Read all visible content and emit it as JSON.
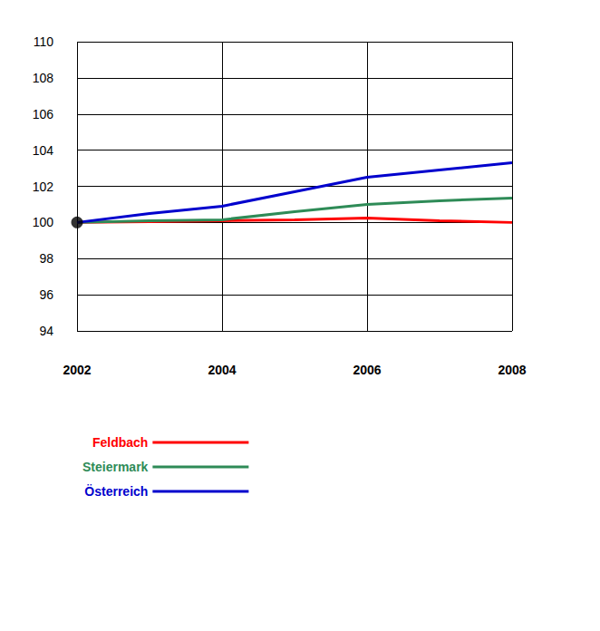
{
  "chart_data": {
    "type": "line",
    "xlim": [
      2002,
      2008
    ],
    "xticks": [
      2002,
      2004,
      2006,
      2008
    ],
    "ylim": [
      94,
      110
    ],
    "yticks": [
      94,
      96,
      98,
      100,
      102,
      104,
      106,
      108,
      110
    ],
    "grid": true,
    "legend": "bottom-left",
    "series": [
      {
        "name": "Feldbach",
        "color": "#ff0000",
        "x": [
          2002,
          2003,
          2004,
          2005,
          2006,
          2007,
          2008
        ],
        "values": [
          100,
          100.05,
          100.1,
          100.15,
          100.25,
          100.1,
          100.0
        ]
      },
      {
        "name": "Steiermark",
        "color": "#2e8b57",
        "x": [
          2002,
          2003,
          2004,
          2005,
          2006,
          2007,
          2008
        ],
        "values": [
          100,
          100.1,
          100.15,
          100.6,
          101.0,
          101.2,
          101.35
        ]
      },
      {
        "name": "Österreich",
        "color": "#0000cd",
        "x": [
          2002,
          2003,
          2004,
          2005,
          2006,
          2007,
          2008
        ],
        "values": [
          100,
          100.5,
          100.9,
          101.7,
          102.5,
          102.9,
          103.3
        ]
      },
      {
        "type": "scatter",
        "color": "#000000",
        "marker": "circle",
        "x": [
          2002
        ],
        "values": [
          100
        ]
      }
    ]
  }
}
